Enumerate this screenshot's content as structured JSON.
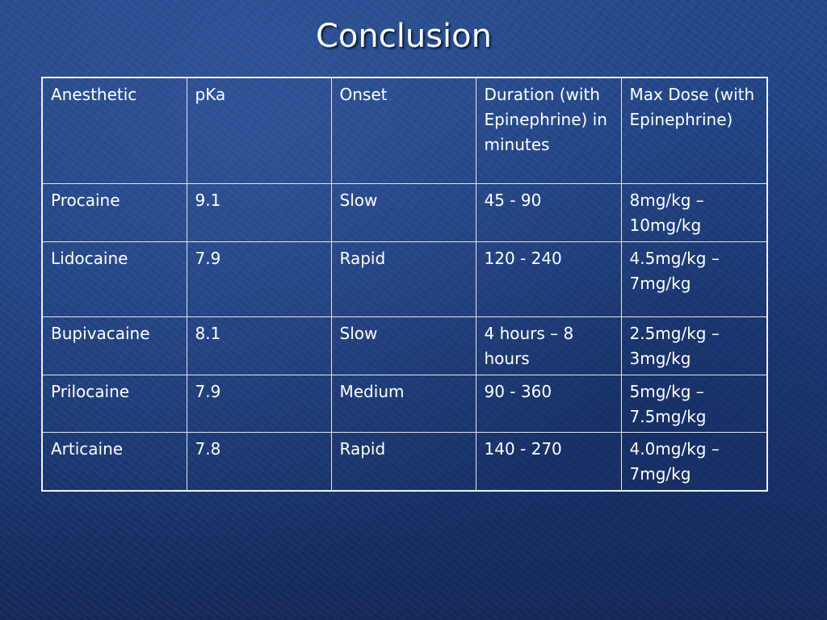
{
  "slide": {
    "title": "Conclusion"
  },
  "table": {
    "headers": [
      "Anesthetic",
      "pKa",
      "Onset",
      "Duration (with Epinephrine) in minutes",
      "Max Dose (with Epinephrine)"
    ],
    "rows": [
      [
        "Procaine",
        "9.1",
        "Slow",
        "45 - 90",
        "8mg/kg – 10mg/kg"
      ],
      [
        "Lidocaine",
        "7.9",
        "Rapid",
        "120 - 240",
        "4.5mg/kg – 7mg/kg"
      ],
      [
        "Bupivacaine",
        "8.1",
        "Slow",
        "4 hours – 8 hours",
        "2.5mg/kg – 3mg/kg"
      ],
      [
        "Prilocaine",
        "7.9",
        "Medium",
        "90 - 360",
        "5mg/kg – 7.5mg/kg"
      ],
      [
        "Articaine",
        "7.8",
        "Rapid",
        "140 - 270",
        "4.0mg/kg – 7mg/kg"
      ]
    ]
  },
  "colors": {
    "background": "#1e3f7e",
    "text": "#ffffff",
    "grid": "#e6e6e6"
  }
}
